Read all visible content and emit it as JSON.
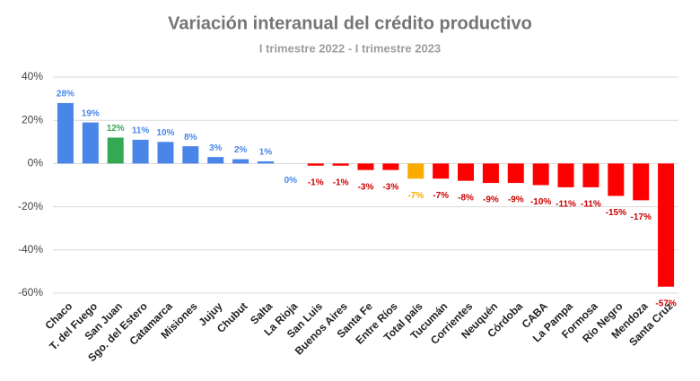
{
  "chart_data": {
    "type": "bar",
    "title": "Variación interanual del crédito productivo",
    "subtitle": "I trimestre 2022 - I trimestre 2023",
    "categories": [
      "Chaco",
      "T. del Fuego",
      "San Juan",
      "Sgo. del Estero",
      "Catamarca",
      "Misiones",
      "Jujuy",
      "Chubut",
      "Salta",
      "La Rioja",
      "San Luis",
      "Buenos Aires",
      "Santa Fe",
      "Entre Ríos",
      "Total país",
      "Tucumán",
      "Corrientes",
      "Neuquén",
      "Córdoba",
      "CABA",
      "La Pampa",
      "Formosa",
      "Río Negro",
      "Mendoza",
      "Santa Cruz"
    ],
    "values": [
      28,
      19,
      12,
      11,
      10,
      8,
      3,
      2,
      1,
      0,
      -1,
      -1,
      -3,
      -3,
      -7,
      -7,
      -8,
      -9,
      -9,
      -10,
      -11,
      -11,
      -15,
      -17,
      -57
    ],
    "value_labels": [
      "28%",
      "19%",
      "12%",
      "11%",
      "10%",
      "8%",
      "3%",
      "2%",
      "1%",
      "0%",
      "-1%",
      "-1%",
      "-3%",
      "-3%",
      "-7%",
      "-7%",
      "-8%",
      "-9%",
      "-9%",
      "-10%",
      "-11%",
      "-11%",
      "-15%",
      "-17%",
      "-57%"
    ],
    "colors": [
      "#4a86e8",
      "#4a86e8",
      "#34a853",
      "#4a86e8",
      "#4a86e8",
      "#4a86e8",
      "#4a86e8",
      "#4a86e8",
      "#4a86e8",
      "#4a86e8",
      "#ff0000",
      "#ff0000",
      "#ff0000",
      "#ff0000",
      "#f9ab00",
      "#ff0000",
      "#ff0000",
      "#ff0000",
      "#ff0000",
      "#ff0000",
      "#ff0000",
      "#ff0000",
      "#ff0000",
      "#ff0000",
      "#ff0000"
    ],
    "label_colors": [
      "#4a86e8",
      "#4a86e8",
      "#34a853",
      "#4a86e8",
      "#4a86e8",
      "#4a86e8",
      "#4a86e8",
      "#4a86e8",
      "#4a86e8",
      "#4a86e8",
      "#cc0000",
      "#cc0000",
      "#cc0000",
      "#cc0000",
      "#f9ab00",
      "#cc0000",
      "#cc0000",
      "#cc0000",
      "#cc0000",
      "#cc0000",
      "#cc0000",
      "#cc0000",
      "#cc0000",
      "#cc0000",
      "#cc0000"
    ],
    "ylim": [
      -60,
      40
    ],
    "yticks": [
      {
        "value": -60,
        "label": "-60%"
      },
      {
        "value": -40,
        "label": "-40%"
      },
      {
        "value": -20,
        "label": "-20%"
      },
      {
        "value": 0,
        "label": "0%"
      },
      {
        "value": 20,
        "label": "20%"
      },
      {
        "value": 40,
        "label": "40%"
      }
    ],
    "grid": true
  }
}
